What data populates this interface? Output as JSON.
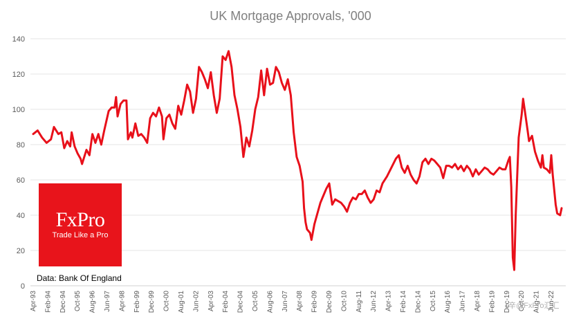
{
  "chart_data": {
    "type": "line",
    "title": "UK Mortgage Approvals, '000",
    "xlabel": "",
    "ylabel": "",
    "ylim": [
      0,
      140
    ],
    "yticks": [
      0,
      20,
      40,
      60,
      80,
      100,
      120,
      140
    ],
    "x_tick_labels": [
      "Apr-93",
      "Feb-94",
      "Dec-94",
      "Oct-95",
      "Aug-96",
      "Jun-97",
      "Apr-98",
      "Feb-99",
      "Dec-99",
      "Oct-00",
      "Aug-01",
      "Jun-02",
      "Apr-03",
      "Feb-04",
      "Dec-04",
      "Oct-05",
      "Aug-06",
      "Jun-07",
      "Apr-08",
      "Feb-09",
      "Dec-09",
      "Oct-10",
      "Aug-11",
      "Jun-12",
      "Apr-13",
      "Feb-14",
      "Dec-14",
      "Oct-15",
      "Aug-16",
      "Jun-17",
      "Apr-18",
      "Feb-19",
      "Dec-19",
      "Oct-20",
      "Aug-21",
      "Jun-22"
    ],
    "grid": true,
    "series": [
      {
        "color": "#e8101a",
        "points": [
          [
            "1993-04",
            86
          ],
          [
            "1993-07",
            88
          ],
          [
            "1993-10",
            84
          ],
          [
            "1994-01",
            81
          ],
          [
            "1994-04",
            83
          ],
          [
            "1994-06",
            90
          ],
          [
            "1994-09",
            86
          ],
          [
            "1994-11",
            87
          ],
          [
            "1995-01",
            78
          ],
          [
            "1995-03",
            82
          ],
          [
            "1995-05",
            79
          ],
          [
            "1995-06",
            87
          ],
          [
            "1995-08",
            79
          ],
          [
            "1995-10",
            75
          ],
          [
            "1995-12",
            72
          ],
          [
            "1996-01",
            69
          ],
          [
            "1996-04",
            77
          ],
          [
            "1996-06",
            74
          ],
          [
            "1996-08",
            86
          ],
          [
            "1996-10",
            81
          ],
          [
            "1996-12",
            86
          ],
          [
            "1997-02",
            80
          ],
          [
            "1997-04",
            88
          ],
          [
            "1997-07",
            99
          ],
          [
            "1997-09",
            101
          ],
          [
            "1997-11",
            101
          ],
          [
            "1997-12",
            107
          ],
          [
            "1998-01",
            96
          ],
          [
            "1998-03",
            103
          ],
          [
            "1998-05",
            105
          ],
          [
            "1998-07",
            105
          ],
          [
            "1998-08",
            83
          ],
          [
            "1998-10",
            87
          ],
          [
            "1998-11",
            84
          ],
          [
            "1999-01",
            92
          ],
          [
            "1999-03",
            85
          ],
          [
            "1999-05",
            86
          ],
          [
            "1999-07",
            84
          ],
          [
            "1999-09",
            81
          ],
          [
            "1999-11",
            95
          ],
          [
            "2000-01",
            98
          ],
          [
            "2000-03",
            96
          ],
          [
            "2000-05",
            101
          ],
          [
            "2000-07",
            96
          ],
          [
            "2000-08",
            83
          ],
          [
            "2000-10",
            95
          ],
          [
            "2000-12",
            97
          ],
          [
            "2001-02",
            92
          ],
          [
            "2001-04",
            89
          ],
          [
            "2001-06",
            102
          ],
          [
            "2001-08",
            97
          ],
          [
            "2001-10",
            105
          ],
          [
            "2001-12",
            114
          ],
          [
            "2002-02",
            110
          ],
          [
            "2002-04",
            98
          ],
          [
            "2002-06",
            106
          ],
          [
            "2002-08",
            124
          ],
          [
            "2002-10",
            121
          ],
          [
            "2002-12",
            117
          ],
          [
            "2003-02",
            112
          ],
          [
            "2003-04",
            121
          ],
          [
            "2003-06",
            108
          ],
          [
            "2003-08",
            98
          ],
          [
            "2003-10",
            106
          ],
          [
            "2003-12",
            130
          ],
          [
            "2004-02",
            128
          ],
          [
            "2004-04",
            133
          ],
          [
            "2004-06",
            124
          ],
          [
            "2004-08",
            108
          ],
          [
            "2004-10",
            100
          ],
          [
            "2004-12",
            90
          ],
          [
            "2005-02",
            73
          ],
          [
            "2005-04",
            84
          ],
          [
            "2005-06",
            79
          ],
          [
            "2005-08",
            88
          ],
          [
            "2005-10",
            100
          ],
          [
            "2005-12",
            107
          ],
          [
            "2006-02",
            122
          ],
          [
            "2006-04",
            108
          ],
          [
            "2006-06",
            123
          ],
          [
            "2006-08",
            114
          ],
          [
            "2006-10",
            115
          ],
          [
            "2006-12",
            124
          ],
          [
            "2007-02",
            121
          ],
          [
            "2007-04",
            115
          ],
          [
            "2007-06",
            111
          ],
          [
            "2007-08",
            117
          ],
          [
            "2007-10",
            108
          ],
          [
            "2007-12",
            87
          ],
          [
            "2008-02",
            73
          ],
          [
            "2008-04",
            68
          ],
          [
            "2008-06",
            59
          ],
          [
            "2008-07",
            44
          ],
          [
            "2008-08",
            36
          ],
          [
            "2008-09",
            32
          ],
          [
            "2008-11",
            30
          ],
          [
            "2008-12",
            26
          ],
          [
            "2009-02",
            35
          ],
          [
            "2009-04",
            41
          ],
          [
            "2009-06",
            47
          ],
          [
            "2009-08",
            51
          ],
          [
            "2009-10",
            55
          ],
          [
            "2009-12",
            58
          ],
          [
            "2010-02",
            46
          ],
          [
            "2010-04",
            49
          ],
          [
            "2010-06",
            48
          ],
          [
            "2010-08",
            47
          ],
          [
            "2010-10",
            45
          ],
          [
            "2010-12",
            42
          ],
          [
            "2011-02",
            47
          ],
          [
            "2011-04",
            50
          ],
          [
            "2011-06",
            49
          ],
          [
            "2011-08",
            52
          ],
          [
            "2011-10",
            52
          ],
          [
            "2011-12",
            54
          ],
          [
            "2012-02",
            50
          ],
          [
            "2012-04",
            47
          ],
          [
            "2012-06",
            49
          ],
          [
            "2012-08",
            54
          ],
          [
            "2012-10",
            53
          ],
          [
            "2012-12",
            58
          ],
          [
            "2013-03",
            62
          ],
          [
            "2013-06",
            67
          ],
          [
            "2013-09",
            72
          ],
          [
            "2013-11",
            74
          ],
          [
            "2014-01",
            67
          ],
          [
            "2014-03",
            64
          ],
          [
            "2014-05",
            68
          ],
          [
            "2014-07",
            63
          ],
          [
            "2014-09",
            60
          ],
          [
            "2014-11",
            58
          ],
          [
            "2015-01",
            62
          ],
          [
            "2015-03",
            70
          ],
          [
            "2015-05",
            72
          ],
          [
            "2015-07",
            69
          ],
          [
            "2015-09",
            72
          ],
          [
            "2015-11",
            71
          ],
          [
            "2016-01",
            69
          ],
          [
            "2016-03",
            67
          ],
          [
            "2016-05",
            61
          ],
          [
            "2016-07",
            68
          ],
          [
            "2016-09",
            68
          ],
          [
            "2016-11",
            67
          ],
          [
            "2017-01",
            69
          ],
          [
            "2017-03",
            66
          ],
          [
            "2017-05",
            68
          ],
          [
            "2017-07",
            65
          ],
          [
            "2017-09",
            68
          ],
          [
            "2017-11",
            66
          ],
          [
            "2018-01",
            62
          ],
          [
            "2018-03",
            66
          ],
          [
            "2018-05",
            63
          ],
          [
            "2018-07",
            65
          ],
          [
            "2018-09",
            67
          ],
          [
            "2018-11",
            66
          ],
          [
            "2019-01",
            64
          ],
          [
            "2019-03",
            63
          ],
          [
            "2019-05",
            65
          ],
          [
            "2019-07",
            67
          ],
          [
            "2019-09",
            66
          ],
          [
            "2019-11",
            66
          ],
          [
            "2020-01",
            71
          ],
          [
            "2020-02",
            73
          ],
          [
            "2020-03",
            56
          ],
          [
            "2020-04",
            16
          ],
          [
            "2020-05",
            9
          ],
          [
            "2020-06",
            40
          ],
          [
            "2020-08",
            84
          ],
          [
            "2020-10",
            97
          ],
          [
            "2020-11",
            106
          ],
          [
            "2020-12",
            100
          ],
          [
            "2021-02",
            88
          ],
          [
            "2021-03",
            82
          ],
          [
            "2021-05",
            85
          ],
          [
            "2021-07",
            76
          ],
          [
            "2021-09",
            71
          ],
          [
            "2021-11",
            67
          ],
          [
            "2021-12",
            74
          ],
          [
            "2022-01",
            67
          ],
          [
            "2022-03",
            66
          ],
          [
            "2022-05",
            64
          ],
          [
            "2022-06",
            74
          ],
          [
            "2022-07",
            63
          ],
          [
            "2022-09",
            46
          ],
          [
            "2022-10",
            41
          ],
          [
            "2022-12",
            40
          ],
          [
            "2023-01",
            44
          ]
        ]
      }
    ]
  },
  "branding": {
    "logo_name": "FxPro",
    "logo_tagline": "Trade Like a Pro",
    "source": "Data: Bank Of England",
    "watermark": "⾟@FxPro汇汇"
  }
}
